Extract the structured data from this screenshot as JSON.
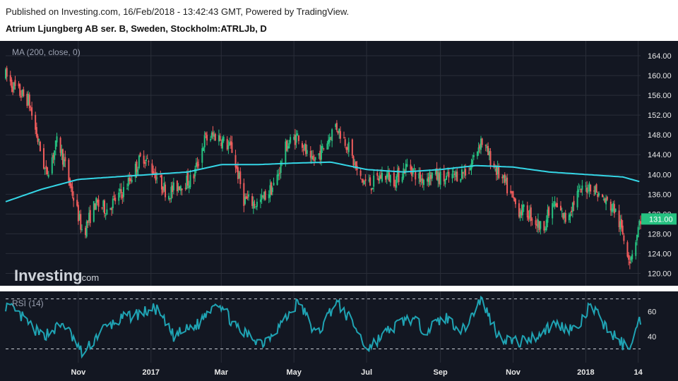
{
  "header": {
    "published": "Published on Investing.com, 16/Feb/2018 - 13:42:43 GMT, Powered by TradingView.",
    "instrument": "Atrium Ljungberg AB ser. B, Sweden, Stockholm:ATRLJb, D"
  },
  "watermark": {
    "brand": "Investing",
    "suffix": ".com"
  },
  "colors": {
    "background": "#131722",
    "up": "#26c281",
    "down": "#f05c5c",
    "ma_line": "#35d6e6",
    "rsi_line": "#1fa3b3",
    "last_price_badge": "#26c281",
    "grid": "#2a2e39"
  },
  "chart_data": [
    {
      "type": "candlestick",
      "indicator_label": "MA (200, close, 0)",
      "last_price_label": "131.00",
      "y_ticks": [
        "164.00",
        "160.00",
        "156.00",
        "152.00",
        "148.00",
        "144.00",
        "140.00",
        "136.00",
        "132.00",
        "128.00",
        "124.00",
        "120.00"
      ],
      "ylim": [
        117.5,
        167
      ],
      "x_ticks": [
        "Nov",
        "2017",
        "Mar",
        "May",
        "Jul",
        "Sep",
        "Nov",
        "2018",
        "14"
      ],
      "x_range": [
        "2016-09-01",
        "2018-02-16"
      ],
      "price_keypoints": [
        [
          "2016-09-01",
          160
        ],
        [
          "2016-09-10",
          157
        ],
        [
          "2016-09-20",
          155
        ],
        [
          "2016-10-05",
          140
        ],
        [
          "2016-10-15",
          147
        ],
        [
          "2016-10-25",
          138
        ],
        [
          "2016-11-05",
          128
        ],
        [
          "2016-11-15",
          134
        ],
        [
          "2016-11-25",
          133
        ],
        [
          "2016-12-10",
          137
        ],
        [
          "2016-12-25",
          144
        ],
        [
          "2017-01-05",
          140
        ],
        [
          "2017-01-15",
          136
        ],
        [
          "2017-01-25",
          138
        ],
        [
          "2017-02-05",
          139
        ],
        [
          "2017-02-15",
          147
        ],
        [
          "2017-02-25",
          148
        ],
        [
          "2017-03-10",
          145
        ],
        [
          "2017-03-20",
          135
        ],
        [
          "2017-04-01",
          134
        ],
        [
          "2017-04-15",
          138
        ],
        [
          "2017-04-25",
          146
        ],
        [
          "2017-05-05",
          148
        ],
        [
          "2017-05-15",
          142
        ],
        [
          "2017-05-25",
          145
        ],
        [
          "2017-06-05",
          150
        ],
        [
          "2017-06-15",
          146
        ],
        [
          "2017-06-25",
          139
        ],
        [
          "2017-07-05",
          138
        ],
        [
          "2017-07-15",
          140
        ],
        [
          "2017-07-25",
          139
        ],
        [
          "2017-08-05",
          142
        ],
        [
          "2017-08-15",
          139
        ],
        [
          "2017-08-25",
          140
        ],
        [
          "2017-09-05",
          139
        ],
        [
          "2017-09-15",
          140
        ],
        [
          "2017-09-25",
          141
        ],
        [
          "2017-10-05",
          147
        ],
        [
          "2017-10-15",
          142
        ],
        [
          "2017-10-25",
          138
        ],
        [
          "2017-11-05",
          133
        ],
        [
          "2017-11-15",
          132
        ],
        [
          "2017-11-25",
          129
        ],
        [
          "2017-12-05",
          134
        ],
        [
          "2017-12-15",
          131
        ],
        [
          "2017-12-25",
          136
        ],
        [
          "2018-01-05",
          138
        ],
        [
          "2018-01-15",
          135
        ],
        [
          "2018-01-25",
          133
        ],
        [
          "2018-02-01",
          128
        ],
        [
          "2018-02-07",
          123
        ],
        [
          "2018-02-12",
          127
        ],
        [
          "2018-02-16",
          131
        ]
      ],
      "ma_keypoints": [
        [
          "2016-09-01",
          134.5
        ],
        [
          "2016-10-01",
          137
        ],
        [
          "2016-11-01",
          139
        ],
        [
          "2016-12-01",
          139.5
        ],
        [
          "2017-01-01",
          140
        ],
        [
          "2017-02-01",
          140.5
        ],
        [
          "2017-03-01",
          142
        ],
        [
          "2017-04-01",
          142
        ],
        [
          "2017-05-01",
          142.3
        ],
        [
          "2017-06-01",
          142.5
        ],
        [
          "2017-07-01",
          141
        ],
        [
          "2017-08-01",
          140.5
        ],
        [
          "2017-09-01",
          141
        ],
        [
          "2017-10-01",
          141.8
        ],
        [
          "2017-11-01",
          141.5
        ],
        [
          "2017-12-01",
          140.5
        ],
        [
          "2018-01-01",
          140
        ],
        [
          "2018-02-01",
          139.5
        ],
        [
          "2018-02-16",
          138.5
        ]
      ]
    },
    {
      "type": "line",
      "indicator_label": "RSI (14)",
      "y_ticks": [
        "60",
        "40"
      ],
      "ylim": [
        19,
        76
      ],
      "reference_lines": [
        70,
        30
      ],
      "rsi_keypoints": [
        [
          "2016-09-01",
          65
        ],
        [
          "2016-09-15",
          55
        ],
        [
          "2016-10-01",
          40
        ],
        [
          "2016-10-20",
          50
        ],
        [
          "2016-11-05",
          25
        ],
        [
          "2016-11-20",
          45
        ],
        [
          "2016-12-10",
          55
        ],
        [
          "2017-01-05",
          62
        ],
        [
          "2017-01-20",
          40
        ],
        [
          "2017-02-10",
          50
        ],
        [
          "2017-02-25",
          70
        ],
        [
          "2017-03-15",
          45
        ],
        [
          "2017-04-05",
          35
        ],
        [
          "2017-04-25",
          55
        ],
        [
          "2017-05-05",
          68
        ],
        [
          "2017-05-20",
          40
        ],
        [
          "2017-06-05",
          68
        ],
        [
          "2017-06-20",
          50
        ],
        [
          "2017-07-01",
          30
        ],
        [
          "2017-07-20",
          45
        ],
        [
          "2017-08-05",
          55
        ],
        [
          "2017-08-20",
          45
        ],
        [
          "2017-09-05",
          55
        ],
        [
          "2017-09-20",
          45
        ],
        [
          "2017-10-05",
          70
        ],
        [
          "2017-10-20",
          40
        ],
        [
          "2017-11-05",
          35
        ],
        [
          "2017-11-20",
          40
        ],
        [
          "2017-12-05",
          50
        ],
        [
          "2017-12-25",
          45
        ],
        [
          "2018-01-05",
          65
        ],
        [
          "2018-01-20",
          45
        ],
        [
          "2018-02-05",
          30
        ],
        [
          "2018-02-10",
          40
        ],
        [
          "2018-02-16",
          54
        ]
      ]
    }
  ]
}
